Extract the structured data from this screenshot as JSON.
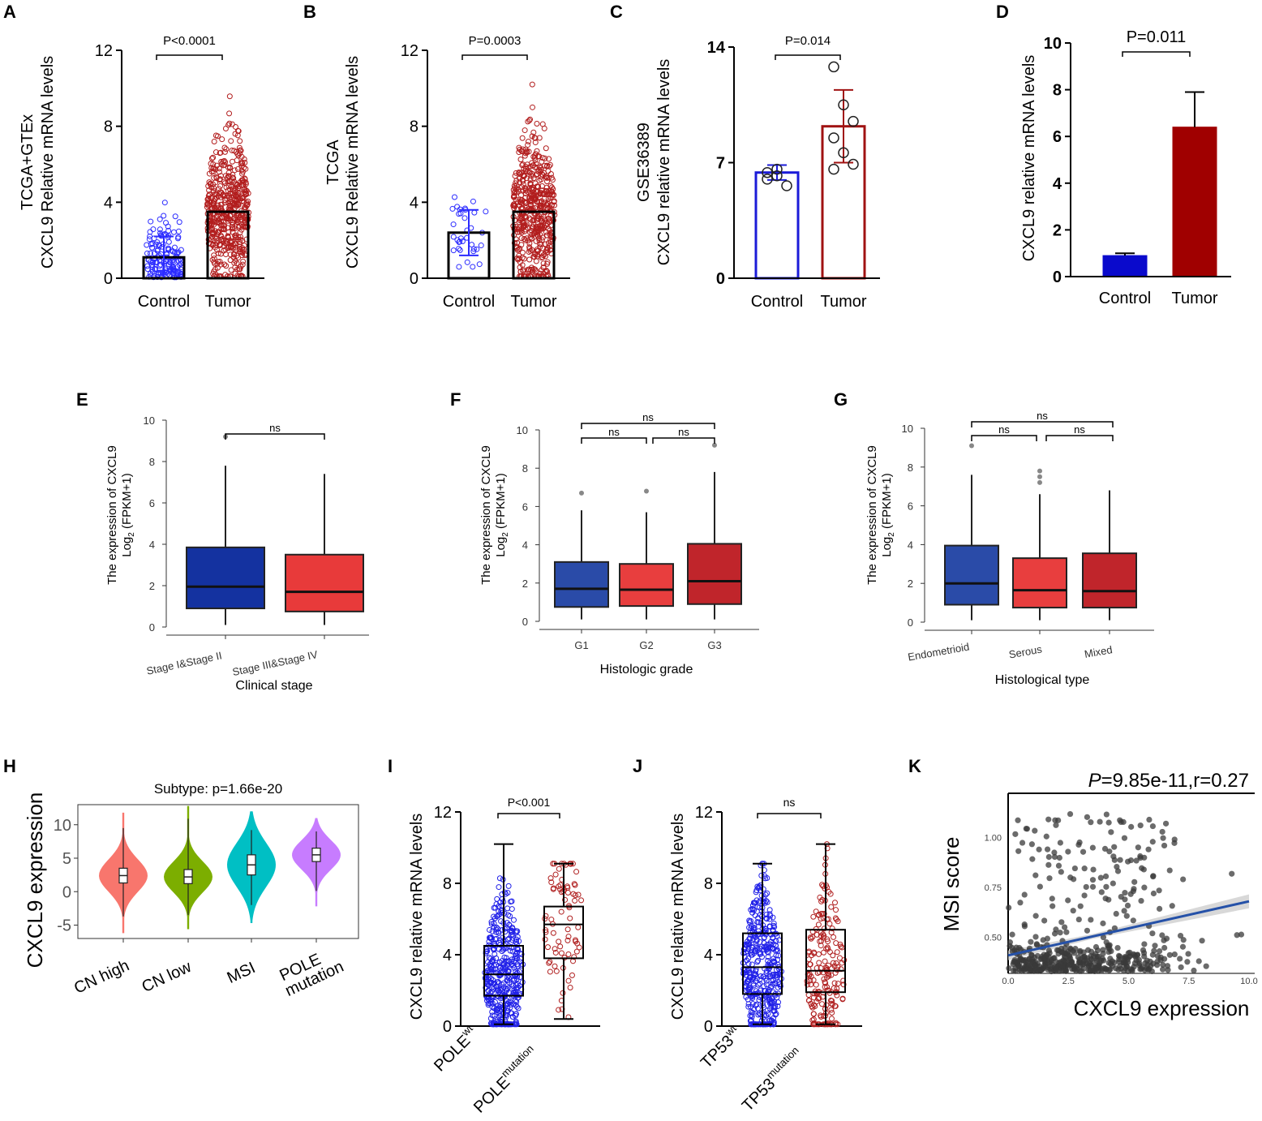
{
  "figure_title": "CXCL9 expression multi-panel figure",
  "chart_data": [
    {
      "panel": "A",
      "type": "bar",
      "ylabel_line1": "TCGA+GTEx",
      "ylabel_line2": "CXCL9 Relative mRNA levels",
      "categories": [
        "Control",
        "Tumor"
      ],
      "values": [
        1.1,
        3.5
      ],
      "sd": [
        1.1,
        0
      ],
      "ylim": [
        0,
        12
      ],
      "yticks": [
        "0",
        "4",
        "8",
        "12"
      ],
      "pvalue": "P<0.0001",
      "colors": [
        "#2b2bff",
        "#b21e1e"
      ]
    },
    {
      "panel": "B",
      "type": "bar",
      "ylabel_line1": "TCGA",
      "ylabel_line2": "CXCL9 Relative mRNA levels",
      "categories": [
        "Control",
        "Tumor"
      ],
      "values": [
        2.4,
        3.5
      ],
      "sd": [
        1.2,
        0
      ],
      "ylim": [
        0,
        12
      ],
      "yticks": [
        "0",
        "4",
        "8",
        "12"
      ],
      "pvalue": "P=0.0003",
      "colors": [
        "#2b2bff",
        "#b21e1e"
      ]
    },
    {
      "panel": "C",
      "type": "bar",
      "ylabel_line1": "GSE36389",
      "ylabel_line2": "CXCL9 relative mRNA levels",
      "categories": [
        "Control",
        "Tumor"
      ],
      "values": [
        6.4,
        9.2
      ],
      "sd": [
        0.45,
        2.2
      ],
      "points": [
        [
          6.0,
          6.6,
          5.6,
          6.4,
          6.2
        ],
        [
          12.8,
          10.5,
          9.5,
          8.5,
          7.6,
          6.9,
          6.6
        ]
      ],
      "ylim": [
        0,
        14
      ],
      "yticks": [
        "0",
        "7",
        "14"
      ],
      "pvalue": "P=0.014",
      "colors": [
        "#1b1bd8",
        "#a01212"
      ]
    },
    {
      "panel": "D",
      "type": "bar",
      "ylabel_line1": "",
      "ylabel_line2": "CXCL9 relative mRNA levels",
      "categories": [
        "Control",
        "Tumor"
      ],
      "values": [
        0.9,
        6.4
      ],
      "sd": [
        0.1,
        1.5
      ],
      "ylim": [
        0,
        10
      ],
      "yticks": [
        "0",
        "2",
        "4",
        "6",
        "8",
        "10"
      ],
      "pvalue": "P=0.011",
      "colors": [
        "#0a0acc",
        "#a00000"
      ]
    },
    {
      "panel": "E",
      "type": "box",
      "ylabel_line1": "The expression of CXCL9",
      "ylabel_line2": "Log2 (FPKM+1)",
      "xlabel": "Clinical stage",
      "categories": [
        "Stage I&Stage II",
        "Stage III&Stage IV"
      ],
      "boxes": [
        {
          "min": 0.1,
          "q1": 0.9,
          "median": 1.95,
          "q3": 3.85,
          "max": 7.8,
          "outliers": [
            9.2
          ]
        },
        {
          "min": 0.1,
          "q1": 0.75,
          "median": 1.7,
          "q3": 3.5,
          "max": 7.4,
          "outliers": []
        }
      ],
      "ylim": [
        0,
        10
      ],
      "yticks": [
        "0",
        "2",
        "4",
        "6",
        "8",
        "10"
      ],
      "comparisons": [
        {
          "from": 0,
          "to": 1,
          "label": "ns"
        }
      ],
      "colors": [
        "#1432a0",
        "#e83a3a"
      ]
    },
    {
      "panel": "F",
      "type": "box",
      "ylabel_line1": "The expression of CXCL9",
      "ylabel_line2": "Log2 (FPKM+1)",
      "xlabel": "Histologic grade",
      "categories": [
        "G1",
        "G2",
        "G3"
      ],
      "boxes": [
        {
          "min": 0.1,
          "q1": 0.75,
          "median": 1.7,
          "q3": 3.1,
          "max": 5.8,
          "outliers": [
            6.7
          ]
        },
        {
          "min": 0.1,
          "q1": 0.8,
          "median": 1.65,
          "q3": 3.0,
          "max": 5.7,
          "outliers": [
            6.8
          ]
        },
        {
          "min": 0.1,
          "q1": 0.9,
          "median": 2.1,
          "q3": 4.05,
          "max": 7.8,
          "outliers": [
            9.2
          ]
        }
      ],
      "ylim": [
        0,
        10
      ],
      "yticks": [
        "0",
        "2",
        "4",
        "6",
        "8",
        "10"
      ],
      "comparisons": [
        {
          "from": 0,
          "to": 1,
          "label": "ns"
        },
        {
          "from": 1,
          "to": 2,
          "label": "ns"
        },
        {
          "from": 0,
          "to": 2,
          "label": "ns"
        }
      ],
      "colors": [
        "#2a4ba8",
        "#e83e3e",
        "#c0252b"
      ]
    },
    {
      "panel": "G",
      "type": "box",
      "ylabel_line1": "The expression of CXCL9",
      "ylabel_line2": "Log2 (FPKM+1)",
      "xlabel": "Histological type",
      "categories": [
        "Endometrioid",
        "Serous",
        "Mixed"
      ],
      "boxes": [
        {
          "min": 0.1,
          "q1": 0.9,
          "median": 2.0,
          "q3": 3.95,
          "max": 7.6,
          "outliers": [
            9.1
          ]
        },
        {
          "min": 0.1,
          "q1": 0.75,
          "median": 1.65,
          "q3": 3.3,
          "max": 6.6,
          "outliers": [
            7.2,
            7.5,
            7.8
          ]
        },
        {
          "min": 0.1,
          "q1": 0.75,
          "median": 1.6,
          "q3": 3.55,
          "max": 6.8,
          "outliers": []
        }
      ],
      "ylim": [
        0,
        10
      ],
      "yticks": [
        "0",
        "2",
        "4",
        "6",
        "8",
        "10"
      ],
      "comparisons": [
        {
          "from": 0,
          "to": 1,
          "label": "ns"
        },
        {
          "from": 1,
          "to": 2,
          "label": "ns"
        },
        {
          "from": 0,
          "to": 2,
          "label": "ns"
        }
      ],
      "colors": [
        "#2a4ba8",
        "#e83e3e",
        "#c0252b"
      ]
    },
    {
      "panel": "H",
      "type": "violin",
      "title": "Subtype: p=1.66e-20",
      "ylabel": "CXCL9 expression",
      "categories": [
        "CN high",
        "CN low",
        "MSI",
        "POLE mutation"
      ],
      "boxes": [
        {
          "min": -3.7,
          "q1": 1.3,
          "median": 2.4,
          "q3": 3.5,
          "max": 9.5
        },
        {
          "min": -3.5,
          "q1": 1.2,
          "median": 2.2,
          "q3": 3.3,
          "max": 10.9
        },
        {
          "min": -2.0,
          "q1": 2.5,
          "median": 4.0,
          "q3": 5.5,
          "max": 9.2
        },
        {
          "min": 0.1,
          "q1": 4.5,
          "median": 5.5,
          "q3": 6.5,
          "max": 9.0
        }
      ],
      "violin_range": [
        [
          -6.2,
          11.8
        ],
        [
          -5.6,
          12.8
        ],
        [
          -4.7,
          12.0
        ],
        [
          -2.2,
          11.0
        ]
      ],
      "ylim": [
        -7,
        13
      ],
      "yticks": [
        "-5",
        "0",
        "5",
        "10"
      ],
      "colors": [
        "#f8766d",
        "#7cae00",
        "#00bfc4",
        "#c77cff"
      ]
    },
    {
      "panel": "I",
      "type": "box",
      "ylabel": "CXCL9 relative mRNA levels",
      "categories": [
        "POLE",
        "POLE"
      ],
      "category_sup": [
        "wt",
        "mutation"
      ],
      "boxes": [
        {
          "min": 0.1,
          "q1": 1.7,
          "median": 2.9,
          "q3": 4.5,
          "max": 10.2
        },
        {
          "min": 0.4,
          "q1": 3.8,
          "median": 5.7,
          "q3": 6.7,
          "max": 9.1
        }
      ],
      "ylim": [
        0,
        12
      ],
      "yticks": [
        "0",
        "4",
        "8",
        "12"
      ],
      "pvalue": "P<0.001",
      "colors": [
        "#2020e8",
        "#b02020"
      ]
    },
    {
      "panel": "J",
      "type": "box",
      "ylabel": "CXCL9 relative mRNA levels",
      "categories": [
        "TP53",
        "TP53"
      ],
      "category_sup": [
        "wt",
        "mutation"
      ],
      "boxes": [
        {
          "min": 0.1,
          "q1": 1.8,
          "median": 3.3,
          "q3": 5.2,
          "max": 9.1
        },
        {
          "min": 0.1,
          "q1": 1.9,
          "median": 3.1,
          "q3": 5.4,
          "max": 10.2
        }
      ],
      "ylim": [
        0,
        12
      ],
      "yticks": [
        "0",
        "4",
        "8",
        "12"
      ],
      "pvalue": "ns",
      "colors": [
        "#2020e8",
        "#b02020"
      ]
    },
    {
      "panel": "K",
      "type": "scatter",
      "title_italic": "P",
      "title_rest": "=9.85e-11,r=0.27",
      "xlabel": "CXCL9 expression",
      "ylabel": "MSI score",
      "xlim": [
        0,
        10
      ],
      "ylim": [
        0.32,
        1.22
      ],
      "xticks": [
        "0.0",
        "2.5",
        "5.0",
        "7.5",
        "10.0"
      ],
      "yticks": [
        "0.50",
        "0.75",
        "1.00"
      ],
      "regression": {
        "intercept": 0.41,
        "slope": 0.027
      },
      "colors": [
        "#3a3a3a",
        "#2551a8"
      ]
    }
  ]
}
